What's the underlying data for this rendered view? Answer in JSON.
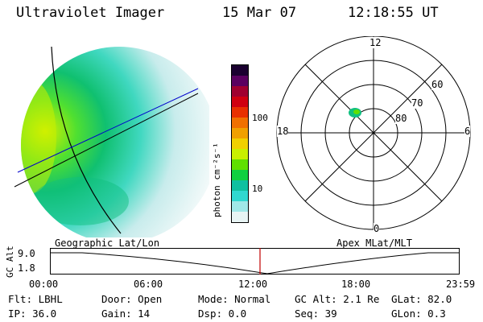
{
  "header": {
    "instrument": "Ultraviolet Imager",
    "date": "15 Mar 07",
    "time": "12:18:55 UT"
  },
  "colorbar": {
    "unit_label": "photon cm⁻²s⁻¹",
    "tick_100": "100",
    "tick_10": "10",
    "colors": [
      "#1a0030",
      "#5a0060",
      "#a00030",
      "#d00010",
      "#e83000",
      "#f07000",
      "#f0a000",
      "#f0d000",
      "#c8f000",
      "#60e000",
      "#10d040",
      "#10c0a0",
      "#30d8d0",
      "#a0e8e8",
      "#e8f4f4"
    ]
  },
  "earth_panel": {
    "grid_label": "Geographic Lat/Lon",
    "land_color": "#10c050",
    "intense_color": "#c8f000"
  },
  "polar_plot": {
    "grid_label": "Apex MLat/MLT",
    "mlt_top": "12",
    "mlt_bottom": "0",
    "mlt_left": "18",
    "mlt_right": "6",
    "lat_60": "60",
    "lat_70": "70",
    "lat_80": "80"
  },
  "altitude_plot": {
    "ylabel": "GC Alt",
    "y_top": "9.0",
    "y_bottom": "1.8",
    "x_ticks": [
      "00:00",
      "06:00",
      "12:00",
      "18:00",
      "23:59"
    ],
    "cursor_time": "12:18:55",
    "cursor_color": "#c00000"
  },
  "status": {
    "flt": "Flt: LBHL",
    "ip": "IP: 36.0",
    "door": "Door: Open",
    "gain": "Gain: 14",
    "mode": "Mode: Normal",
    "dsp": "Dsp:     0.0",
    "gc_alt": "GC Alt: 2.1 Re",
    "seq": "Seq: 39",
    "glat": "GLat:  82.0",
    "glon": "GLon:   0.3"
  }
}
